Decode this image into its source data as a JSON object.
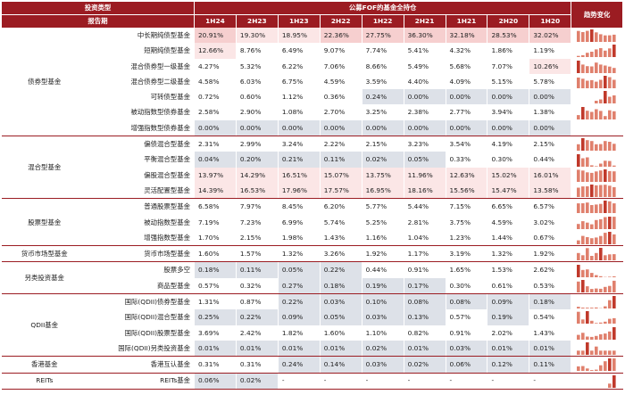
{
  "header": {
    "col1_label": "投资类型",
    "group_label": "公募FOF的基金全持仓",
    "row_label": "报告期",
    "trend_label": "趋势变化",
    "periods": [
      "1H24",
      "2H23",
      "1H23",
      "2H22",
      "1H22",
      "2H21",
      "1H21",
      "2H20",
      "1H20"
    ]
  },
  "colors": {
    "header_bg": "#9b1c22",
    "bar": "#e0806d",
    "bar_peak": "#c0392b",
    "cell_grey": "#dde1e8",
    "cell_pink_light": "#fbe6e6",
    "cell_pink_mid": "#f6cfcf"
  },
  "groups": [
    {
      "name": "债券型基金",
      "rows": [
        {
          "name": "中长期纯债型基金",
          "values": [
            "20.91%",
            "19.30%",
            "18.95%",
            "22.36%",
            "27.75%",
            "36.30%",
            "32.18%",
            "28.53%",
            "32.02%"
          ],
          "numbers": [
            20.91,
            19.3,
            18.95,
            22.36,
            27.75,
            36.3,
            32.18,
            28.53,
            32.02
          ]
        },
        {
          "name": "短期纯债型基金",
          "values": [
            "12.66%",
            "8.76%",
            "6.49%",
            "9.07%",
            "7.74%",
            "5.41%",
            "4.32%",
            "1.86%",
            "1.19%"
          ],
          "numbers": [
            12.66,
            8.76,
            6.49,
            9.07,
            7.74,
            5.41,
            4.32,
            1.86,
            1.19
          ]
        },
        {
          "name": "混合债券型一级基金",
          "values": [
            "4.27%",
            "5.32%",
            "6.22%",
            "7.06%",
            "8.66%",
            "5.49%",
            "5.68%",
            "7.07%",
            "10.26%"
          ],
          "numbers": [
            4.27,
            5.32,
            6.22,
            7.06,
            8.66,
            5.49,
            5.68,
            7.07,
            10.26
          ]
        },
        {
          "name": "混合债券型二级基金",
          "values": [
            "4.58%",
            "6.03%",
            "6.75%",
            "4.59%",
            "3.59%",
            "4.40%",
            "4.09%",
            "5.15%",
            "5.78%"
          ],
          "numbers": [
            4.58,
            6.03,
            6.75,
            4.59,
            3.59,
            4.4,
            4.09,
            5.15,
            5.78
          ]
        },
        {
          "name": "可转债型基金",
          "values": [
            "0.72%",
            "0.60%",
            "1.12%",
            "0.36%",
            "0.24%",
            "0.00%",
            "0.00%",
            "0.00%",
            "0.00%"
          ],
          "numbers": [
            0.72,
            0.6,
            1.12,
            0.36,
            0.24,
            0.0,
            0.0,
            0.0,
            0.0
          ]
        },
        {
          "name": "被动指数型债券基金",
          "values": [
            "2.58%",
            "2.90%",
            "1.08%",
            "2.70%",
            "3.25%",
            "2.38%",
            "2.77%",
            "3.94%",
            "1.38%"
          ],
          "numbers": [
            2.58,
            2.9,
            1.08,
            2.7,
            3.25,
            2.38,
            2.77,
            3.94,
            1.38
          ]
        },
        {
          "name": "增强指数型债券基金",
          "values": [
            "0.00%",
            "0.00%",
            "0.00%",
            "0.00%",
            "0.00%",
            "0.00%",
            "0.00%",
            "0.00%",
            "0.00%"
          ],
          "numbers": [
            0,
            0,
            0,
            0,
            0,
            0,
            0,
            0,
            0
          ]
        }
      ]
    },
    {
      "name": "混合型基金",
      "rows": [
        {
          "name": "偏债混合型基金",
          "values": [
            "2.31%",
            "2.99%",
            "3.24%",
            "2.22%",
            "2.15%",
            "3.23%",
            "3.54%",
            "4.19%",
            "2.15%"
          ],
          "numbers": [
            2.31,
            2.99,
            3.24,
            2.22,
            2.15,
            3.23,
            3.54,
            4.19,
            2.15
          ]
        },
        {
          "name": "平衡混合型基金",
          "values": [
            "0.04%",
            "0.20%",
            "0.21%",
            "0.11%",
            "0.02%",
            "0.05%",
            "0.33%",
            "0.30%",
            "0.44%"
          ],
          "numbers": [
            0.04,
            0.2,
            0.21,
            0.11,
            0.02,
            0.05,
            0.33,
            0.3,
            0.44
          ]
        },
        {
          "name": "偏股混合型基金",
          "values": [
            "13.97%",
            "14.29%",
            "16.51%",
            "15.07%",
            "13.75%",
            "11.96%",
            "12.63%",
            "15.02%",
            "16.01%"
          ],
          "numbers": [
            13.97,
            14.29,
            16.51,
            15.07,
            13.75,
            11.96,
            12.63,
            15.02,
            16.01
          ]
        },
        {
          "name": "灵活配置型基金",
          "values": [
            "14.39%",
            "16.53%",
            "17.96%",
            "17.57%",
            "16.95%",
            "18.16%",
            "15.56%",
            "15.47%",
            "13.58%"
          ],
          "numbers": [
            14.39,
            16.53,
            17.96,
            17.57,
            16.95,
            18.16,
            15.56,
            15.47,
            13.58
          ]
        }
      ]
    },
    {
      "name": "股票型基金",
      "rows": [
        {
          "name": "普通股票型基金",
          "values": [
            "6.58%",
            "7.97%",
            "8.45%",
            "6.20%",
            "5.77%",
            "5.44%",
            "7.15%",
            "6.65%",
            "6.57%"
          ],
          "numbers": [
            6.58,
            7.97,
            8.45,
            6.2,
            5.77,
            5.44,
            7.15,
            6.65,
            6.57
          ]
        },
        {
          "name": "被动指数型基金",
          "values": [
            "7.19%",
            "7.23%",
            "6.99%",
            "5.74%",
            "5.25%",
            "2.81%",
            "3.75%",
            "4.59%",
            "3.02%"
          ],
          "numbers": [
            7.19,
            7.23,
            6.99,
            5.74,
            5.25,
            2.81,
            3.75,
            4.59,
            3.02
          ]
        },
        {
          "name": "增强指数型基金",
          "values": [
            "1.70%",
            "2.15%",
            "1.98%",
            "1.43%",
            "1.16%",
            "1.04%",
            "1.23%",
            "1.44%",
            "0.67%"
          ],
          "numbers": [
            1.7,
            2.15,
            1.98,
            1.43,
            1.16,
            1.04,
            1.23,
            1.44,
            0.67
          ]
        }
      ]
    },
    {
      "name": "货币市场型基金",
      "rows": [
        {
          "name": "货币市场型基金",
          "values": [
            "1.60%",
            "1.57%",
            "1.32%",
            "3.26%",
            "1.92%",
            "1.17%",
            "3.19%",
            "1.32%",
            "1.92%"
          ],
          "numbers": [
            1.6,
            1.57,
            1.32,
            3.26,
            1.92,
            1.17,
            3.19,
            1.32,
            1.92
          ]
        }
      ]
    },
    {
      "name": "另类投资基金",
      "rows": [
        {
          "name": "股票多空",
          "values": [
            "0.18%",
            "0.11%",
            "0.05%",
            "0.22%",
            "0.44%",
            "0.91%",
            "1.65%",
            "1.53%",
            "2.62%"
          ],
          "numbers": [
            0.18,
            0.11,
            0.05,
            0.22,
            0.44,
            0.91,
            1.65,
            1.53,
            2.62
          ]
        },
        {
          "name": "商品型基金",
          "values": [
            "0.57%",
            "0.32%",
            "0.27%",
            "0.18%",
            "0.19%",
            "0.17%",
            "0.30%",
            "0.61%",
            "0.53%"
          ],
          "numbers": [
            0.57,
            0.32,
            0.27,
            0.18,
            0.19,
            0.17,
            0.3,
            0.61,
            0.53
          ]
        }
      ]
    },
    {
      "name": "QDII基金",
      "rows": [
        {
          "name": "国际(QDII)债券型基金",
          "values": [
            "1.31%",
            "0.87%",
            "0.22%",
            "0.03%",
            "0.10%",
            "0.08%",
            "0.08%",
            "0.09%",
            "0.18%"
          ],
          "numbers": [
            1.31,
            0.87,
            0.22,
            0.03,
            0.1,
            0.08,
            0.08,
            0.09,
            0.18
          ]
        },
        {
          "name": "国际(QDII)混合型基金",
          "values": [
            "0.25%",
            "0.22%",
            "0.09%",
            "0.05%",
            "0.03%",
            "0.13%",
            "0.57%",
            "0.19%",
            "0.54%"
          ],
          "numbers": [
            0.25,
            0.22,
            0.09,
            0.05,
            0.03,
            0.13,
            0.57,
            0.19,
            0.54
          ]
        },
        {
          "name": "国际(QDII)股票型基金",
          "values": [
            "3.69%",
            "2.42%",
            "1.82%",
            "1.60%",
            "1.10%",
            "0.82%",
            "0.91%",
            "2.02%",
            "1.43%"
          ],
          "numbers": [
            3.69,
            2.42,
            1.82,
            1.6,
            1.1,
            0.82,
            0.91,
            2.02,
            1.43
          ]
        },
        {
          "name": "国际(QDII)另类投资基金",
          "values": [
            "0.01%",
            "0.01%",
            "0.01%",
            "0.01%",
            "0.02%",
            "0.01%",
            "0.03%",
            "0.01%",
            "0.01%"
          ],
          "numbers": [
            0.01,
            0.01,
            0.01,
            0.01,
            0.02,
            0.01,
            0.03,
            0.01,
            0.01
          ]
        }
      ]
    },
    {
      "name": "香港基金",
      "rows": [
        {
          "name": "香港互认基金",
          "values": [
            "0.31%",
            "0.31%",
            "0.24%",
            "0.14%",
            "0.03%",
            "0.02%",
            "0.06%",
            "0.12%",
            "0.11%"
          ],
          "numbers": [
            0.31,
            0.31,
            0.24,
            0.14,
            0.03,
            0.02,
            0.06,
            0.12,
            0.11
          ]
        }
      ]
    },
    {
      "name": "REITs",
      "rows": [
        {
          "name": "REITs基金",
          "values": [
            "0.06%",
            "0.02%",
            "-",
            "-",
            "-",
            "-",
            "-",
            "-",
            "-"
          ],
          "numbers": [
            0.06,
            0.02,
            0,
            0,
            0,
            0,
            0,
            0,
            0
          ]
        }
      ]
    }
  ]
}
